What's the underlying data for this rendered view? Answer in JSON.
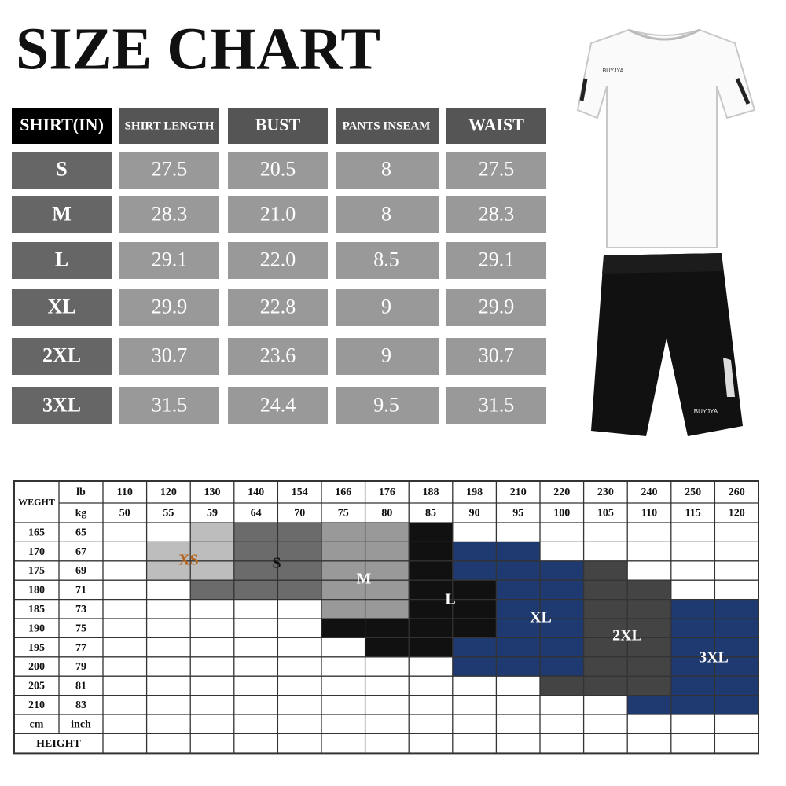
{
  "title": "SIZE CHART",
  "size_table": {
    "headers": [
      "SHIRT(IN)",
      "SHIRT LENGTH",
      "BUST",
      "PANTS INSEAM",
      "WAIST"
    ],
    "rows": [
      [
        "S",
        "27.5",
        "20.5",
        "8",
        "27.5"
      ],
      [
        "M",
        "28.3",
        "21.0",
        "8",
        "28.3"
      ],
      [
        "L",
        "29.1",
        "22.0",
        "8.5",
        "29.1"
      ],
      [
        "XL",
        "29.9",
        "22.8",
        "9",
        "29.9"
      ],
      [
        "2XL",
        "30.7",
        "23.6",
        "9",
        "30.7"
      ],
      [
        "3XL",
        "31.5",
        "24.4",
        "9.5",
        "31.5"
      ]
    ]
  },
  "product_logos": [
    "BUYJYA",
    "BUYJYA"
  ],
  "weight_height": {
    "weight_label": "WEGHT",
    "lb_label": "lb",
    "kg_label": "kg",
    "lb": [
      "110",
      "120",
      "130",
      "140",
      "154",
      "166",
      "176",
      "188",
      "198",
      "210",
      "220",
      "230",
      "240",
      "250",
      "260"
    ],
    "kg": [
      "50",
      "55",
      "59",
      "64",
      "70",
      "75",
      "80",
      "85",
      "90",
      "95",
      "100",
      "105",
      "110",
      "115",
      "120"
    ],
    "height_rows": [
      [
        "165",
        "65"
      ],
      [
        "170",
        "67"
      ],
      [
        "175",
        "69"
      ],
      [
        "180",
        "71"
      ],
      [
        "185",
        "73"
      ],
      [
        "190",
        "75"
      ],
      [
        "195",
        "77"
      ],
      [
        "200",
        "79"
      ],
      [
        "205",
        "81"
      ],
      [
        "210",
        "83"
      ]
    ],
    "cm_label": "cm",
    "inch_label": "inch",
    "height_label": "HEIGHT",
    "sizes": [
      "XS",
      "S",
      "M",
      "L",
      "XL",
      "2XL",
      "3XL"
    ]
  }
}
